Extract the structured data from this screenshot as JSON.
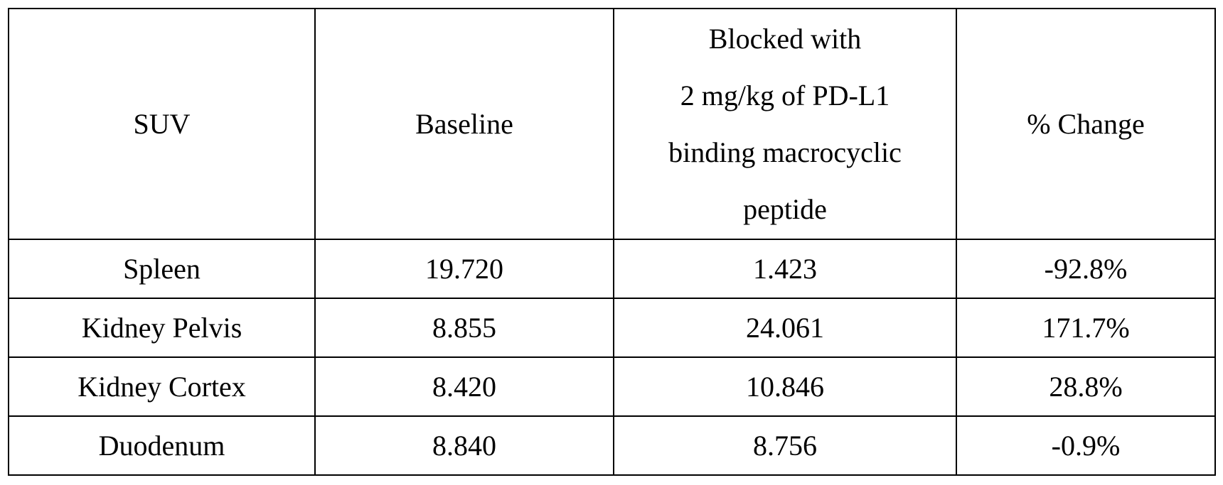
{
  "table": {
    "headers": [
      {
        "lines": [
          "SUV"
        ]
      },
      {
        "lines": [
          "Baseline"
        ]
      },
      {
        "lines": [
          "Blocked with",
          "2 mg/kg of PD-L1",
          "binding macrocyclic",
          "peptide"
        ]
      },
      {
        "lines": [
          "% Change"
        ]
      }
    ],
    "rows": [
      [
        "Spleen",
        "19.720",
        "1.423",
        "-92.8%"
      ],
      [
        "Kidney Pelvis",
        "8.855",
        "24.061",
        "171.7%"
      ],
      [
        "Kidney Cortex",
        "8.420",
        "10.846",
        "28.8%"
      ],
      [
        "Duodenum",
        "8.840",
        "8.756",
        "-0.9%"
      ]
    ]
  }
}
